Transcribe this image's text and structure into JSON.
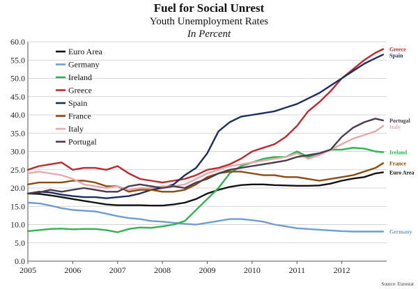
{
  "chart_data": {
    "type": "line",
    "title": "Fuel for Social Unrest",
    "subtitle": "Youth Unemployment Rates",
    "unit_note": "In Percent",
    "source": "Source: Eurostat",
    "xlabel": "",
    "ylabel": "",
    "xlim": [
      2005,
      2013
    ],
    "ylim": [
      0,
      60
    ],
    "x_ticks": [
      "2005",
      "2006",
      "2007",
      "2008",
      "2009",
      "2010",
      "2011",
      "2012"
    ],
    "y_ticks": [
      "0.0",
      "5.0",
      "10.0",
      "15.0",
      "20.0",
      "25.0",
      "30.0",
      "35.0",
      "40.0",
      "45.0",
      "50.0",
      "55.0",
      "60.0"
    ],
    "grid": "horizontal",
    "legend_position": "top-left",
    "x": [
      2005.0,
      2005.25,
      2005.5,
      2005.75,
      2006.0,
      2006.25,
      2006.5,
      2006.75,
      2007.0,
      2007.25,
      2007.5,
      2007.75,
      2008.0,
      2008.25,
      2008.5,
      2008.75,
      2009.0,
      2009.25,
      2009.5,
      2009.75,
      2010.0,
      2010.25,
      2010.5,
      2010.75,
      2011.0,
      2011.25,
      2011.5,
      2011.75,
      2012.0,
      2012.25,
      2012.5,
      2012.75,
      2012.92
    ],
    "series": [
      {
        "name": "Euro Area",
        "end_label": "Euro Area",
        "color": "#111111",
        "values": [
          18.5,
          18.4,
          18.0,
          17.5,
          17.0,
          16.5,
          16.0,
          15.5,
          15.3,
          15.3,
          15.3,
          15.2,
          15.2,
          15.5,
          16.0,
          17.0,
          18.5,
          19.5,
          20.3,
          20.8,
          21.0,
          21.0,
          20.8,
          20.7,
          20.6,
          20.6,
          20.7,
          21.2,
          22.0,
          22.6,
          23.0,
          24.0,
          24.3
        ]
      },
      {
        "name": "Germany",
        "end_label": "Germany",
        "color": "#6f9dd0",
        "values": [
          16.0,
          15.8,
          15.2,
          14.5,
          14.0,
          13.8,
          13.6,
          13.0,
          12.3,
          11.8,
          11.5,
          11.0,
          10.8,
          10.5,
          10.2,
          10.0,
          10.5,
          11.0,
          11.5,
          11.5,
          11.2,
          10.8,
          10.0,
          9.5,
          9.0,
          8.8,
          8.6,
          8.4,
          8.2,
          8.1,
          8.1,
          8.1,
          8.1
        ]
      },
      {
        "name": "Ireland",
        "end_label": "Ireland",
        "color": "#2db353",
        "values": [
          8.2,
          8.5,
          8.8,
          8.9,
          8.7,
          8.8,
          8.8,
          8.5,
          7.9,
          8.8,
          9.2,
          9.1,
          9.5,
          10.0,
          11.0,
          14.0,
          17.0,
          20.0,
          24.0,
          26.0,
          27.0,
          28.0,
          28.5,
          28.5,
          30.0,
          28.5,
          29.5,
          30.5,
          30.5,
          31.0,
          30.8,
          30.0,
          29.8
        ]
      },
      {
        "name": "Greece",
        "end_label": "Greece",
        "color": "#c0272d",
        "values": [
          25.0,
          26.0,
          26.5,
          27.0,
          25.0,
          25.5,
          25.5,
          25.0,
          26.0,
          24.0,
          22.5,
          22.0,
          21.5,
          22.0,
          22.5,
          23.5,
          25.0,
          25.5,
          26.5,
          28.0,
          30.0,
          31.0,
          32.0,
          34.0,
          37.0,
          41.0,
          43.5,
          46.5,
          50.0,
          52.5,
          55.0,
          57.0,
          58.0
        ]
      },
      {
        "name": "Spain",
        "end_label": "Spain",
        "color": "#1f2d5c",
        "values": [
          18.5,
          19.0,
          18.8,
          18.2,
          17.8,
          17.5,
          17.5,
          17.2,
          17.5,
          17.8,
          18.5,
          19.5,
          20.0,
          21.0,
          23.5,
          25.5,
          29.5,
          35.5,
          38.0,
          39.5,
          40.0,
          40.5,
          41.0,
          42.0,
          43.0,
          44.5,
          46.0,
          48.0,
          50.0,
          52.0,
          54.0,
          55.5,
          56.5
        ]
      },
      {
        "name": "France",
        "end_label": "France",
        "color": "#8b4a12",
        "values": [
          21.0,
          21.5,
          21.5,
          21.5,
          22.0,
          22.0,
          21.5,
          20.5,
          20.5,
          19.0,
          19.5,
          19.5,
          19.0,
          19.0,
          19.5,
          21.0,
          23.0,
          24.0,
          24.5,
          24.5,
          24.0,
          23.5,
          23.5,
          23.0,
          23.0,
          22.5,
          22.0,
          22.5,
          23.0,
          23.5,
          24.5,
          25.5,
          26.8
        ]
      },
      {
        "name": "Italy",
        "end_label": "Italy",
        "color": "#e5a9ab",
        "values": [
          24.0,
          24.5,
          24.0,
          23.5,
          22.5,
          21.0,
          20.5,
          20.0,
          20.5,
          19.5,
          20.0,
          20.0,
          20.5,
          20.5,
          21.0,
          22.5,
          24.0,
          25.0,
          26.0,
          26.5,
          27.0,
          27.5,
          28.0,
          28.5,
          29.5,
          28.0,
          29.0,
          30.5,
          32.0,
          33.5,
          34.5,
          35.5,
          37.0
        ]
      },
      {
        "name": "Portugal",
        "end_label": "Portugal",
        "color": "#4a3a4e",
        "values": [
          18.5,
          18.8,
          19.5,
          19.0,
          19.5,
          20.0,
          19.5,
          19.0,
          19.0,
          20.5,
          21.0,
          20.5,
          20.0,
          20.5,
          20.0,
          21.5,
          22.5,
          24.0,
          25.0,
          25.5,
          26.0,
          26.5,
          27.0,
          27.5,
          28.5,
          29.0,
          29.5,
          30.5,
          34.0,
          36.5,
          38.0,
          39.0,
          38.5
        ]
      }
    ],
    "legend_order": [
      "Euro Area",
      "Germany",
      "Ireland",
      "Greece",
      "Spain",
      "France",
      "Italy",
      "Portugal"
    ]
  }
}
